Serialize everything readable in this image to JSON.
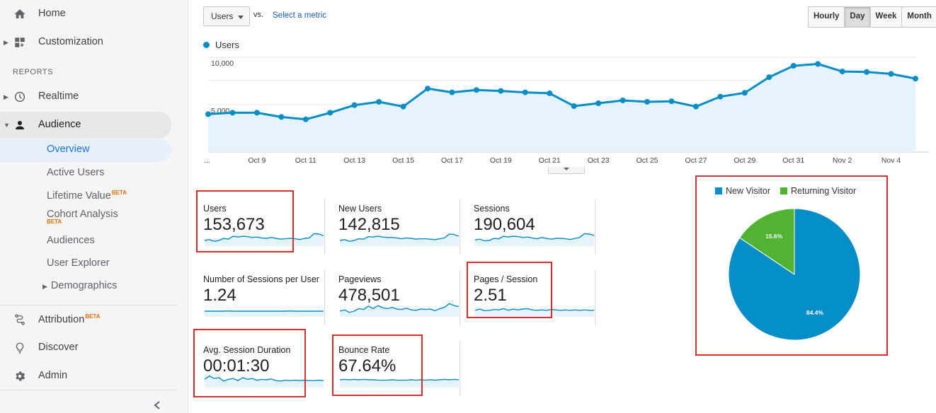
{
  "sidebar": {
    "top_items": [
      {
        "label": "Home",
        "icon": "home-icon"
      },
      {
        "label": "Customization",
        "icon": "dashboard-icon"
      }
    ],
    "reports_heading": "REPORTS",
    "report_items": [
      {
        "label": "Realtime",
        "icon": "clock-icon"
      },
      {
        "label": "Audience",
        "icon": "person-icon"
      }
    ],
    "audience_sub": [
      {
        "label": "Overview"
      },
      {
        "label": "Active Users"
      },
      {
        "label": "Lifetime Value",
        "badge": "BETA"
      },
      {
        "label": "Cohort Analysis",
        "badge": "BETA"
      },
      {
        "label": "Audiences"
      },
      {
        "label": "User Explorer"
      },
      {
        "label": "Demographics"
      }
    ],
    "bottom_items": [
      {
        "label": "Attribution",
        "icon": "attribution-icon",
        "badge": "BETA"
      },
      {
        "label": "Discover",
        "icon": "lightbulb-icon"
      },
      {
        "label": "Admin",
        "icon": "gear-icon"
      }
    ],
    "collapse_icon": "chevron-left-icon"
  },
  "toolbar": {
    "metric_select": "Users",
    "vs": "vs.",
    "select_metric": "Select a metric",
    "granularity": [
      "Hourly",
      "Day",
      "Week",
      "Month"
    ],
    "granularity_selected": "Day"
  },
  "colors": {
    "series": "#058dc7",
    "area_fill": "#e6f3fa",
    "returning": "#50b432",
    "highlight": "#d32f2f",
    "link": "#1a5fb4"
  },
  "chart_data": [
    {
      "type": "line",
      "series": [
        {
          "name": "Users",
          "values": [
            4000,
            4150,
            4150,
            3700,
            3450,
            4150,
            4950,
            5300,
            4800,
            6700,
            6300,
            6550,
            6450,
            6300,
            6200,
            4850,
            5150,
            5450,
            5300,
            5350,
            4800,
            5850,
            6250,
            7900,
            9100,
            9300,
            8500,
            8450,
            8250,
            7750
          ]
        }
      ],
      "x_tick_labels": [
        "...",
        "Oct 9",
        "Oct 11",
        "Oct 13",
        "Oct 15",
        "Oct 17",
        "Oct 19",
        "Oct 21",
        "Oct 23",
        "Oct 25",
        "Oct 27",
        "Oct 29",
        "Oct 31",
        "Nov 2",
        "Nov 4"
      ],
      "y_tick_labels": [
        "10,000",
        "5,000"
      ],
      "ylim": [
        0,
        10000
      ],
      "grid": true,
      "legend": "top-left"
    },
    {
      "type": "pie",
      "categories": [
        "New Visitor",
        "Returning Visitor"
      ],
      "values": [
        84.4,
        15.6
      ],
      "data_labels": [
        "84.4%",
        "15.6%"
      ],
      "colors": [
        "#058dc7",
        "#50b432"
      ],
      "legend": "top"
    }
  ],
  "scorecards": [
    {
      "label": "Users",
      "value": "153,673",
      "spark": [
        5,
        5.2,
        4.8,
        5,
        5.5,
        5.3,
        6,
        5.8,
        6,
        5.9,
        5.7,
        5.8,
        5.6,
        5.5,
        5.7,
        5.5,
        5.3,
        5.4,
        5.5,
        5.4,
        5.2,
        5.5,
        5.6,
        6.6,
        6.5,
        6.1
      ]
    },
    {
      "label": "New Users",
      "value": "142,815",
      "spark": [
        5,
        5.2,
        4.8,
        5,
        5.4,
        5.3,
        5.9,
        5.8,
        6,
        5.8,
        5.7,
        5.7,
        5.6,
        5.4,
        5.6,
        5.5,
        5.3,
        5.4,
        5.4,
        5.3,
        5.2,
        5.4,
        5.6,
        6.5,
        6.4,
        6
      ]
    },
    {
      "label": "Sessions",
      "value": "190,604",
      "spark": [
        5.1,
        5.3,
        4.9,
        5,
        5.5,
        5.4,
        6,
        5.8,
        6,
        5.9,
        5.7,
        5.8,
        5.6,
        5.4,
        5.7,
        5.5,
        5.3,
        5.5,
        5.5,
        5.4,
        5.2,
        5.5,
        5.7,
        6.6,
        6.5,
        6.2
      ]
    },
    {
      "label": "Number of Sessions per User",
      "value": "1.24",
      "spark": [
        5,
        5,
        5,
        5,
        5,
        5.05,
        5,
        5,
        5,
        5,
        5,
        5,
        5,
        5,
        5,
        5,
        5,
        5,
        5.05,
        5,
        5,
        5,
        5,
        5,
        5,
        5
      ]
    },
    {
      "label": "Pageviews",
      "value": "478,501",
      "spark": [
        5,
        5.3,
        4.7,
        5,
        5.6,
        5.4,
        6.2,
        5.6,
        6.3,
        5.8,
        5.6,
        5.9,
        5.5,
        5.4,
        5.7,
        5.3,
        5.2,
        5.5,
        5.4,
        5.5,
        5.1,
        5.6,
        5.9,
        6.8,
        6.3,
        6.1
      ]
    },
    {
      "label": "Pages / Session",
      "value": "2.51",
      "spark": [
        5.2,
        5.5,
        5.1,
        5.2,
        5.4,
        5.3,
        5.6,
        5.2,
        5.5,
        5.3,
        5.5,
        5.6,
        5.3,
        5.2,
        5.3,
        5.2,
        5.4,
        5.3,
        5.2,
        5.3,
        5.2,
        5.3,
        5.2,
        5.3,
        5.2,
        5.2
      ]
    },
    {
      "label": "Avg. Session Duration",
      "value": "00:01:30",
      "spark": [
        5.6,
        6.4,
        5.8,
        6,
        5.2,
        5.6,
        5.8,
        5.3,
        6,
        5.6,
        5.8,
        5.4,
        5.6,
        5.5,
        5.7,
        5.3,
        5.2,
        5.4,
        5.3,
        5.4,
        5.3,
        5.4,
        5.3,
        5.3,
        5.4,
        5.3
      ]
    },
    {
      "label": "Bounce Rate",
      "value": "67.64%",
      "spark": [
        5.5,
        5.6,
        5.5,
        5.6,
        5.5,
        5.6,
        5.5,
        5.5,
        5.4,
        5.4,
        5.4,
        5.5,
        5.4,
        5.4,
        5.4,
        5.5,
        5.4,
        5.5,
        5.4,
        5.5,
        5.4,
        5.5,
        5.6,
        5.5,
        5.6,
        5.5
      ]
    }
  ]
}
